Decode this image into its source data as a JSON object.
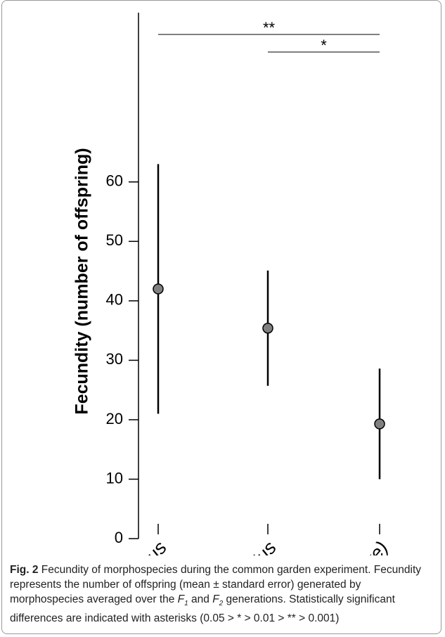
{
  "chart_data": {
    "type": "errorbar",
    "ylabel": "Fecundity (number of offspring)",
    "categories": [
      "L. nyassanus",
      "L. solidus",
      "L. sp. (ovum-like)"
    ],
    "values": [
      42,
      35.4,
      19.3
    ],
    "errors": [
      21,
      9.7,
      9.3
    ],
    "color": "#808080",
    "ylim": [
      -2,
      88
    ],
    "yticks": [
      0,
      10,
      20,
      30,
      40,
      50,
      60
    ],
    "annotations": [
      "**",
      "*"
    ]
  },
  "caption": {
    "label": "Fig. 2",
    "parts": [
      "Fecundity of morphospecies during the common garden experiment. Fecundity represents the number of offspring (mean ± standard error) generated by morphospecies averaged over the ",
      "F",
      "1",
      " and ",
      "F",
      "2",
      " generations. Statistically significant differences are indicated with asterisks (0.05 > * > 0.01 > ** > 0.001)"
    ]
  }
}
